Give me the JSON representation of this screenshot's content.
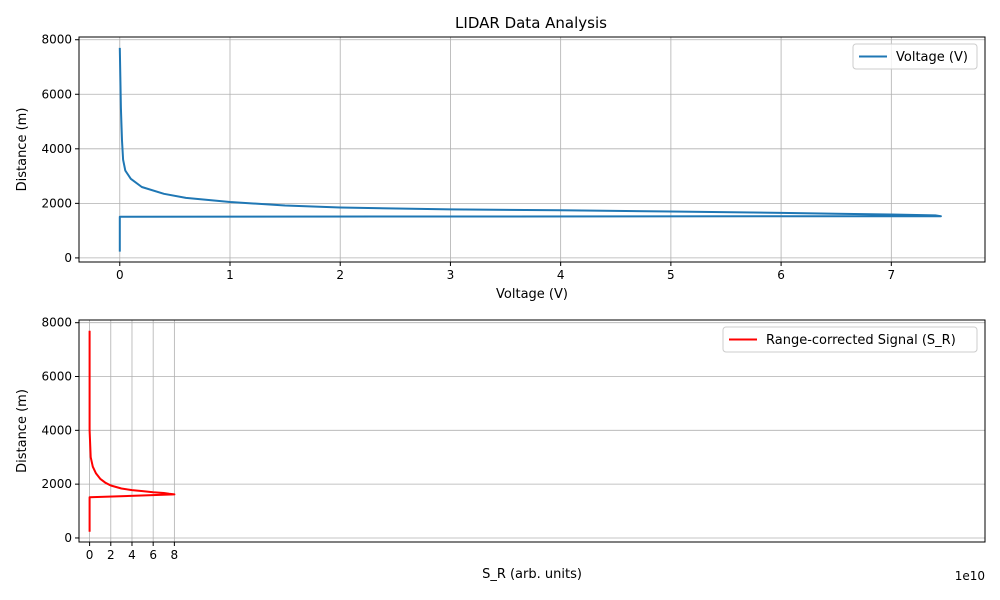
{
  "title": "LIDAR Data Analysis",
  "chart_data": [
    {
      "type": "line",
      "xlabel": "Voltage (V)",
      "ylabel": "Distance (m)",
      "xlim": [
        -0.37,
        7.85
      ],
      "ylim": [
        -150,
        8100
      ],
      "xticks": [
        0,
        1,
        2,
        3,
        4,
        5,
        6,
        7
      ],
      "yticks": [
        0,
        2000,
        4000,
        6000,
        8000
      ],
      "grid": true,
      "legend_position": "top-right",
      "color": "#1f77b4",
      "series": [
        {
          "name": "Voltage (V)",
          "x": [
            0.0,
            0.0,
            0.0,
            0.0,
            0.0,
            7.45,
            7.4,
            7.0,
            6.5,
            6.0,
            5.0,
            4.0,
            3.0,
            2.0,
            1.5,
            1.0,
            0.6,
            0.4,
            0.2,
            0.1,
            0.05,
            0.03,
            0.02,
            0.01,
            0.0
          ],
          "y": [
            230,
            800,
            1200,
            1500,
            1510,
            1530,
            1560,
            1590,
            1620,
            1650,
            1700,
            1750,
            1780,
            1850,
            1920,
            2050,
            2200,
            2350,
            2600,
            2900,
            3200,
            3600,
            4300,
            5500,
            7700
          ]
        }
      ]
    },
    {
      "type": "line",
      "xlabel": "S_R (arb. units)",
      "ylabel": "Distance (m)",
      "x_multiplier": "1e10",
      "xlim": [
        -1.0,
        84.5
      ],
      "ylim": [
        -150,
        8100
      ],
      "xticks": [
        0,
        2,
        4,
        6,
        8
      ],
      "yticks": [
        0,
        2000,
        4000,
        6000,
        8000
      ],
      "grid": true,
      "legend_position": "top-right",
      "color": "#ff0000",
      "series": [
        {
          "name": "Range-corrected Signal (S_R)",
          "x": [
            0.0,
            0.0,
            0.0,
            0.0,
            0.0,
            8.0,
            7.5,
            7.0,
            6.0,
            5.0,
            4.0,
            3.0,
            2.0,
            1.5,
            1.0,
            0.6,
            0.3,
            0.1,
            0.0,
            0.0
          ],
          "y": [
            230,
            800,
            1200,
            1500,
            1510,
            1620,
            1640,
            1670,
            1700,
            1740,
            1780,
            1840,
            1950,
            2050,
            2200,
            2400,
            2650,
            3000,
            4000,
            7700
          ]
        }
      ]
    }
  ]
}
